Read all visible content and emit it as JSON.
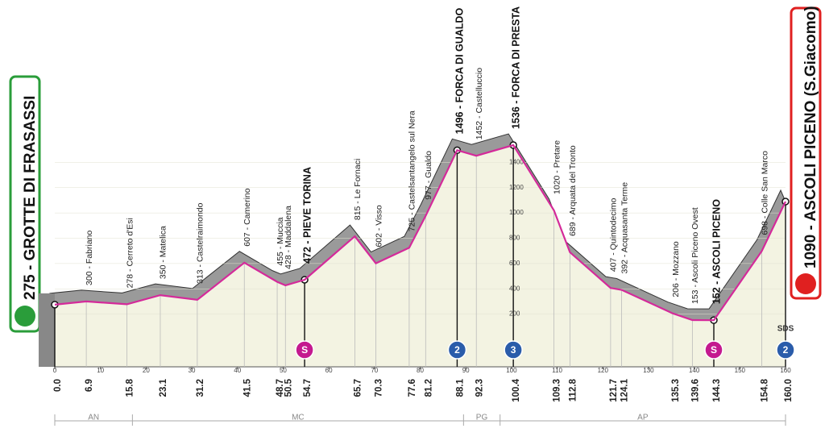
{
  "chart_data": {
    "type": "area",
    "x": [
      0.0,
      6.9,
      15.8,
      23.1,
      31.2,
      41.5,
      48.7,
      50.5,
      54.7,
      65.7,
      70.3,
      77.6,
      81.2,
      88.1,
      92.3,
      100.4,
      109.3,
      112.8,
      121.7,
      124.1,
      135.3,
      139.6,
      144.3,
      154.8,
      160.0
    ],
    "x_labels": [
      "0.0",
      "6.9",
      "15.8",
      "23.1",
      "31.2",
      "41.5",
      "48.7",
      "50.5",
      "54.7",
      "65.7",
      "70.3",
      "77.6",
      "81.2",
      "88.1",
      "92.3",
      "100.4",
      "109.3",
      "112.8",
      "121.7",
      "124.1",
      "135.3",
      "139.6",
      "144.3",
      "154.8",
      "160.0"
    ],
    "values": [
      275,
      300,
      278,
      350,
      313,
      607,
      455,
      428,
      472,
      815,
      602,
      725,
      977,
      1496,
      1452,
      1536,
      1020,
      689,
      407,
      392,
      206,
      153,
      152,
      698,
      1090
    ],
    "value_labels": [
      "275 - GROTTE DI FRASASSI",
      "300 - Fabriano",
      "278 - Cerreto d'Esi",
      "350 - Matelica",
      "313 - Castelraimondo",
      "607 - Camerino",
      "455 - Muccia",
      "428 - Maddalena",
      "472 - PIEVE TORINA",
      "815 - Le Fornaci",
      "602 - Visso",
      "725 - Castelsantangelo sul Nera",
      "977 - Gualdo",
      "1496 - FORCA DI GUALDO",
      "1452 - Castelluccio",
      "1536 - FORCA DI PRESTA",
      "1020 - Pretare",
      "689 - Arquata del Tronto",
      "407 - Quintodecimo",
      "392 - Acquasanta Terme",
      "206 - Mozzano",
      "153 - Ascoli Piceno Ovest",
      "152 - ASCOLI PICENO",
      "698 - Colle San Marco",
      "1090 - ASCOLI PICENO (S.Giacomo)"
    ],
    "emphasis": [
      true,
      false,
      false,
      false,
      false,
      false,
      false,
      false,
      true,
      false,
      false,
      false,
      false,
      true,
      false,
      true,
      false,
      false,
      false,
      false,
      false,
      false,
      true,
      false,
      true
    ],
    "color": "#d42a9a",
    "xlim": [
      0,
      160
    ],
    "xticks": [
      0,
      10,
      20,
      30,
      40,
      50,
      60,
      70,
      80,
      90,
      100,
      110,
      120,
      130,
      140,
      150,
      160
    ],
    "ylim": [
      0,
      1600
    ],
    "yticks": [
      200,
      400,
      600,
      800,
      1000,
      1200,
      1400
    ],
    "markers": [
      {
        "label": "S",
        "km": 54.7,
        "kind": "sprint"
      },
      {
        "label": "2",
        "km": 88.1,
        "kind": "kom"
      },
      {
        "label": "3",
        "km": 100.4,
        "kind": "kom"
      },
      {
        "label": "S",
        "km": 144.3,
        "kind": "sprint"
      },
      {
        "label": "2",
        "km": 160.0,
        "kind": "kom"
      }
    ],
    "regions": [
      {
        "name": "AN",
        "from": 0,
        "to": 17
      },
      {
        "name": "MC",
        "from": 17,
        "to": 89.5
      },
      {
        "name": "PG",
        "from": 89.5,
        "to": 97.5
      },
      {
        "name": "AP",
        "from": 97.5,
        "to": 160
      }
    ],
    "logo": "SDS"
  }
}
